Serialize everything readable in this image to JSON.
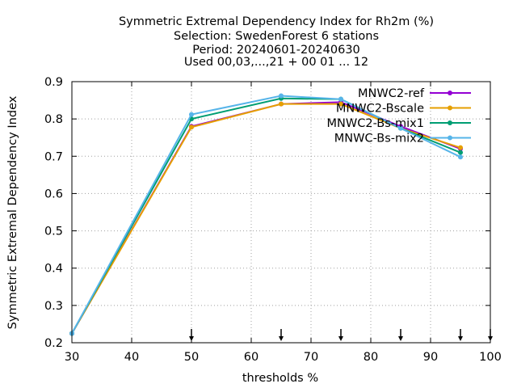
{
  "title_lines": [
    "Symmetric Extremal Dependency Index  for Rh2m (%)",
    "Selection: SwedenForest      6 stations",
    "Period: 20240601-20240630",
    "Used 00,03,...,21 + 00 01 ... 12"
  ],
  "chart_data": {
    "type": "line",
    "xlabel": "thresholds %",
    "ylabel": "Symmetric Extremal Dependency Index",
    "xlim": [
      30,
      100
    ],
    "ylim": [
      0.2,
      0.9
    ],
    "xticks": [
      30,
      40,
      50,
      60,
      70,
      80,
      90,
      100
    ],
    "yticks": [
      0.2,
      0.3,
      0.4,
      0.5,
      0.6,
      0.7,
      0.8,
      0.9
    ],
    "x_tick_labels": [
      "30",
      "40",
      "50",
      "60",
      "70",
      "80",
      "90",
      "100"
    ],
    "y_tick_labels": [
      "0.2",
      "0.3",
      "0.4",
      "0.5",
      "0.6",
      "0.7",
      "0.8",
      "0.9"
    ],
    "grid": true,
    "legend_position": "top-right",
    "threshold_arrows_x": [
      50,
      65,
      75,
      85,
      95,
      100
    ],
    "series": [
      {
        "name": "MNWC2-ref",
        "color": "#9400d3",
        "x": [
          30,
          50,
          65,
          75,
          85,
          95
        ],
        "y": [
          0.225,
          0.78,
          0.84,
          0.845,
          0.78,
          0.72
        ]
      },
      {
        "name": "MNWC2-Bscale",
        "color": "#e69f00",
        "x": [
          30,
          50,
          65,
          75,
          85,
          95
        ],
        "y": [
          0.225,
          0.778,
          0.84,
          0.84,
          0.775,
          0.723
        ]
      },
      {
        "name": "MNWC2-Bs-mix1",
        "color": "#009e73",
        "x": [
          30,
          50,
          65,
          75,
          85,
          95
        ],
        "y": [
          0.225,
          0.8,
          0.855,
          0.853,
          0.775,
          0.71
        ]
      },
      {
        "name": "MNWC-Bs-mix2",
        "color": "#56b4e9",
        "x": [
          30,
          50,
          65,
          75,
          85,
          95
        ],
        "y": [
          0.225,
          0.812,
          0.862,
          0.853,
          0.775,
          0.698
        ]
      }
    ]
  }
}
